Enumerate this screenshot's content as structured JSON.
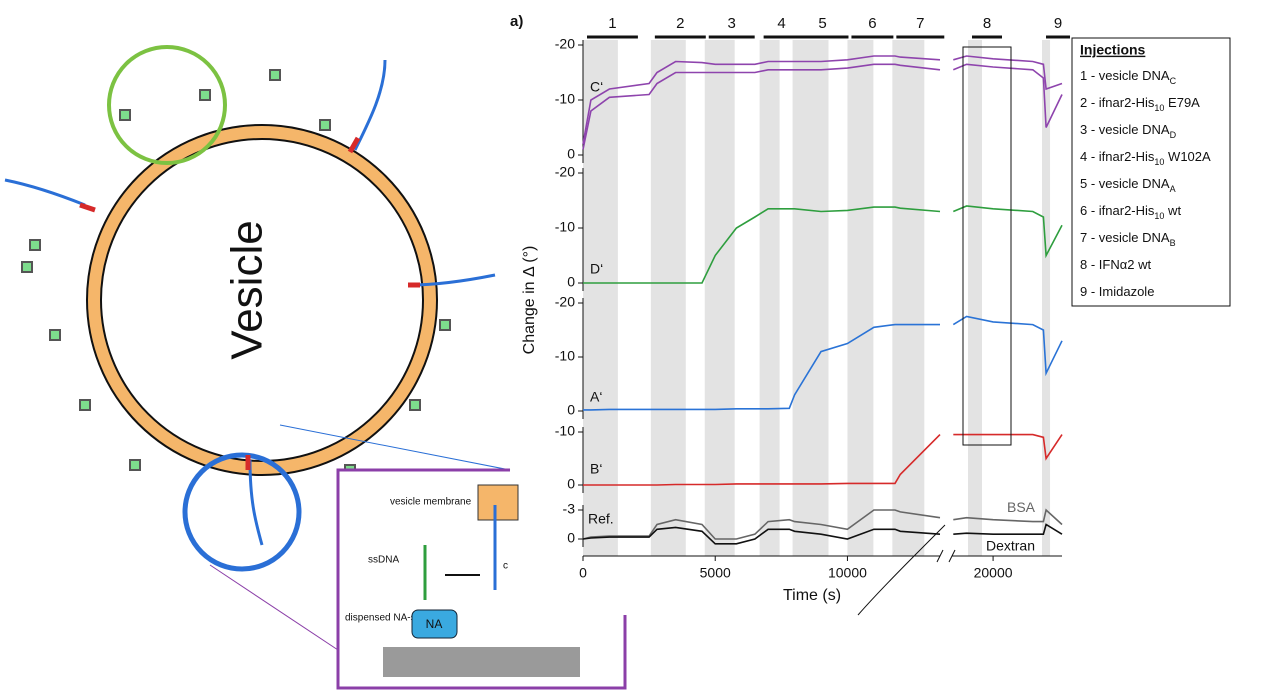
{
  "figure_label": "a)",
  "diagram": {
    "vesicle_label": "Vesicle",
    "inset": {
      "membrane": "vesicle membrane",
      "ssdna": "ssDNA",
      "dispensed": "dispensed NA-ssDNA",
      "na": "NA",
      "cut": "c"
    }
  },
  "chart_data": {
    "type": "line",
    "ylabel": "Change in Δ (°)",
    "xlabel": "Time (s)",
    "x": [
      0,
      300,
      1000,
      2500,
      2800,
      3500,
      4500,
      5000,
      5800,
      6500,
      7000,
      7800,
      8000,
      9000,
      10000,
      11000,
      11800,
      12000,
      13500,
      18500,
      19000,
      20000,
      21500,
      21900,
      22000,
      22600
    ],
    "xlim": [
      0,
      22600
    ],
    "xbreak": [
      13500,
      18450
    ],
    "xticks": [
      0,
      5000,
      10000,
      20000
    ],
    "injections": [
      {
        "label": "1",
        "start": 0,
        "end": 1320
      },
      {
        "label": "2",
        "start": 2566,
        "end": 3887
      },
      {
        "label": "3",
        "start": 4604,
        "end": 5736
      },
      {
        "label": "4",
        "start": 6679,
        "end": 7434
      },
      {
        "label": "5",
        "start": 7925,
        "end": 9283
      },
      {
        "label": "6",
        "start": 10000,
        "end": 10981
      },
      {
        "label": "7",
        "start": 11698,
        "end": 12906
      },
      {
        "label": "8",
        "start": 19054,
        "end": 19582
      },
      {
        "label": "9",
        "start": 21846,
        "end": 22148
      }
    ],
    "legend": {
      "title": "Injections",
      "items": [
        [
          "1 - vesicle DNA",
          "C"
        ],
        [
          "2 - ifnar2-His",
          "10",
          " E79A"
        ],
        [
          "3 - vesicle DNA",
          "D"
        ],
        [
          "4 - ifnar2-His",
          "10",
          " W102A"
        ],
        [
          "5 - vesicle DNA",
          "A"
        ],
        [
          "6 - ifnar2-His",
          "10",
          " wt"
        ],
        [
          "7 - vesicle DNA",
          "B"
        ],
        [
          "8 - IFNα2 wt"
        ],
        [
          "9 - Imidazole"
        ]
      ]
    },
    "panels": [
      {
        "name": "C‘",
        "ylim": [
          0,
          -20
        ],
        "yticks": [
          -20,
          -10,
          0
        ],
        "series": [
          {
            "color": "#8e44ad",
            "values": [
              -2,
              -10,
              -12,
              -13,
              -15,
              -17,
              -16.8,
              -16.5,
              -16.5,
              -16.5,
              -17,
              -17,
              -17,
              -17,
              -17.3,
              -18,
              -18,
              -17.8,
              -17.3,
              -17.3,
              -18,
              -17.5,
              -17,
              -16.5,
              -12,
              -13
            ]
          },
          {
            "color": "#8e44ad",
            "values": [
              -1,
              -8,
              -10.5,
              -11,
              -13,
              -15,
              -15,
              -15,
              -15,
              -15,
              -15.5,
              -15.5,
              -15.5,
              -15.5,
              -15.8,
              -16.5,
              -16.5,
              -16.3,
              -15.5,
              -15.5,
              -16.5,
              -16,
              -15.5,
              -14,
              -5,
              -11
            ]
          }
        ]
      },
      {
        "name": "D‘",
        "ylim": [
          0,
          -20
        ],
        "yticks": [
          -20,
          -10,
          0
        ],
        "series": [
          {
            "color": "#2e9e3e",
            "values": [
              0,
              0,
              0,
              0,
              0,
              0,
              0,
              -5,
              -10,
              -12,
              -13.5,
              -13.5,
              -13.5,
              -13,
              -13.2,
              -13.8,
              -13.8,
              -13.6,
              -13,
              -13,
              -14,
              -13.5,
              -13,
              -12,
              -5,
              -10.5
            ]
          }
        ]
      },
      {
        "name": "A‘",
        "ylim": [
          0,
          -20
        ],
        "yticks": [
          -20,
          -10,
          0
        ],
        "series": [
          {
            "color": "#2a73d6",
            "values": [
              -0.2,
              -0.2,
              -0.3,
              -0.3,
              -0.3,
              -0.3,
              -0.3,
              -0.3,
              -0.4,
              -0.4,
              -0.4,
              -0.5,
              -3,
              -11,
              -12.5,
              -15.5,
              -16,
              -16,
              -16,
              -16,
              -17.5,
              -16.5,
              -16,
              -15,
              -7,
              -13
            ]
          }
        ]
      },
      {
        "name": "B‘",
        "ylim": [
          0,
          -10
        ],
        "yticks": [
          -10,
          0
        ],
        "series": [
          {
            "color": "#d62a2a",
            "values": [
              0,
              0,
              0,
              0,
              0,
              -0.1,
              -0.1,
              -0.1,
              -0.2,
              -0.2,
              -0.2,
              -0.2,
              -0.2,
              -0.2,
              -0.3,
              -0.3,
              -0.3,
              -2,
              -9.5,
              -9.5,
              -9.5,
              -9.5,
              -9.5,
              -9,
              -5,
              -9.5
            ]
          }
        ]
      },
      {
        "name": "Ref.",
        "ylim": [
          0,
          -3
        ],
        "yticks": [
          -3,
          0
        ],
        "series": [
          {
            "name": "BSA",
            "color": "#666666",
            "values": [
              0,
              -0.2,
              -0.3,
              -0.3,
              -1.5,
              -2,
              -1.5,
              0,
              0,
              -0.5,
              -1.8,
              -2,
              -1.8,
              -1.5,
              -1,
              -3,
              -3,
              -2.8,
              -2.2,
              -2,
              -2.2,
              -2,
              -1.8,
              -1.8,
              -3,
              -1.5
            ]
          },
          {
            "name": "Dextran",
            "color": "#111111",
            "values": [
              0,
              -0.1,
              -0.2,
              -0.2,
              -1,
              -1.2,
              -0.8,
              0.5,
              0.5,
              0,
              -1,
              -1,
              -0.8,
              -0.5,
              0,
              -1,
              -1,
              -0.8,
              -0.5,
              -0.5,
              -0.6,
              -0.5,
              -0.5,
              -0.5,
              -1.5,
              -0.5
            ]
          }
        ]
      }
    ]
  }
}
